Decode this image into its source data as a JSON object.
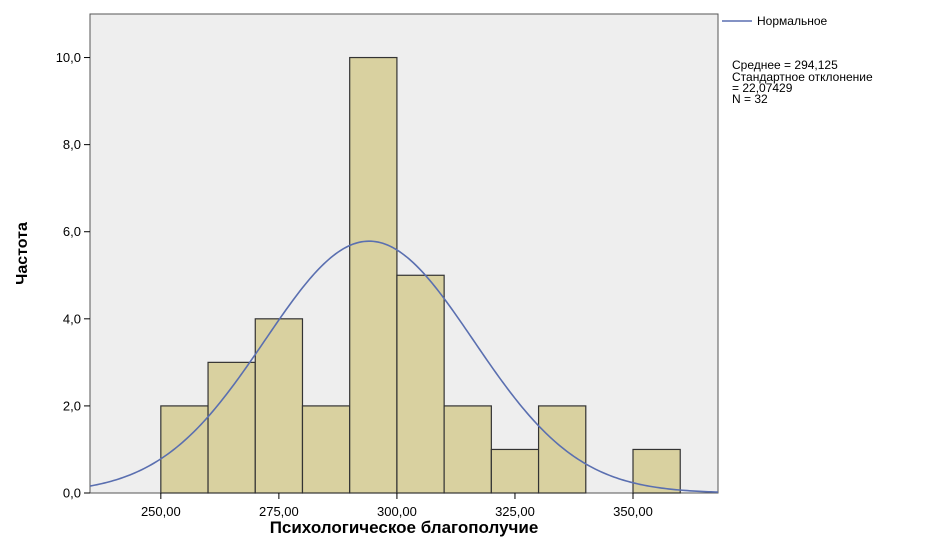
{
  "chart_data": {
    "type": "bar",
    "subtype": "histogram",
    "xlabel": "Психологическое благополучие",
    "ylabel": "Частота",
    "bin_width": 10,
    "bins": [
      {
        "start": 250,
        "end": 260,
        "count": 2
      },
      {
        "start": 260,
        "end": 270,
        "count": 3
      },
      {
        "start": 270,
        "end": 280,
        "count": 4
      },
      {
        "start": 280,
        "end": 290,
        "count": 2
      },
      {
        "start": 290,
        "end": 300,
        "count": 10
      },
      {
        "start": 300,
        "end": 310,
        "count": 5
      },
      {
        "start": 310,
        "end": 320,
        "count": 2
      },
      {
        "start": 320,
        "end": 330,
        "count": 1
      },
      {
        "start": 330,
        "end": 340,
        "count": 2
      },
      {
        "start": 340,
        "end": 350,
        "count": 0
      },
      {
        "start": 350,
        "end": 360,
        "count": 1
      }
    ],
    "xlim": [
      235,
      368
    ],
    "ylim": [
      0,
      11
    ],
    "x_ticks": [
      250,
      275,
      300,
      325,
      350
    ],
    "x_tick_labels": [
      "250,00",
      "275,00",
      "300,00",
      "325,00",
      "350,00"
    ],
    "y_ticks": [
      0,
      2,
      4,
      6,
      8,
      10
    ],
    "y_tick_labels": [
      "0,0",
      "2,0",
      "4,0",
      "6,0",
      "8,0",
      "10,0"
    ],
    "normal_curve": {
      "mean": 294.125,
      "std": 22.07429,
      "n": 32
    },
    "legend": {
      "position": "top-right",
      "series_label": "Нормальное",
      "stats_lines": [
        "Среднее = 294,125",
        "Стандартное отклонение",
        "= 22,07429",
        "N = 32"
      ]
    },
    "colors": {
      "bar_fill": "#d9d1a0",
      "bar_stroke": "#333333",
      "curve": "#5a6fb0",
      "plot_bg": "#eeeeee"
    },
    "grid": false
  }
}
